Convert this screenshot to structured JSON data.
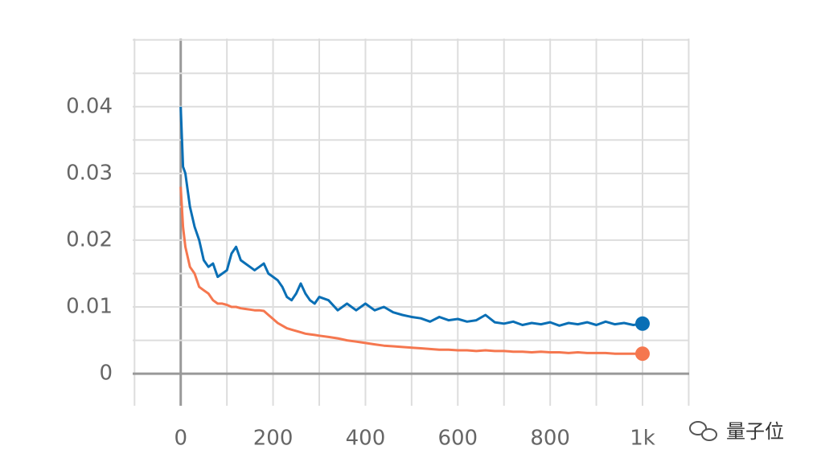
{
  "chart_data": {
    "type": "line",
    "x": [
      0,
      5,
      10,
      20,
      30,
      40,
      50,
      60,
      70,
      80,
      90,
      100,
      110,
      120,
      130,
      140,
      150,
      160,
      170,
      180,
      190,
      200,
      210,
      220,
      230,
      240,
      250,
      260,
      270,
      280,
      290,
      300,
      320,
      340,
      360,
      380,
      400,
      420,
      440,
      460,
      480,
      500,
      520,
      540,
      560,
      580,
      600,
      620,
      640,
      660,
      680,
      700,
      720,
      740,
      760,
      780,
      800,
      820,
      840,
      860,
      880,
      900,
      920,
      940,
      960,
      980,
      1000
    ],
    "series": [
      {
        "color": "#0a6fb5",
        "values": [
          0.04,
          0.031,
          0.03,
          0.025,
          0.022,
          0.02,
          0.017,
          0.016,
          0.0165,
          0.0145,
          0.015,
          0.0155,
          0.018,
          0.019,
          0.017,
          0.0165,
          0.016,
          0.0155,
          0.016,
          0.0165,
          0.015,
          0.0145,
          0.014,
          0.013,
          0.0115,
          0.011,
          0.012,
          0.0135,
          0.012,
          0.011,
          0.0105,
          0.0115,
          0.011,
          0.0095,
          0.0105,
          0.0095,
          0.0105,
          0.0095,
          0.01,
          0.0092,
          0.0088,
          0.0085,
          0.0083,
          0.0078,
          0.0085,
          0.008,
          0.0082,
          0.0078,
          0.008,
          0.0088,
          0.0077,
          0.0075,
          0.0078,
          0.0073,
          0.0076,
          0.0074,
          0.0077,
          0.0072,
          0.0076,
          0.0074,
          0.0077,
          0.0073,
          0.0078,
          0.0074,
          0.0076,
          0.0073,
          0.0075
        ]
      },
      {
        "color": "#f5774f",
        "values": [
          0.028,
          0.022,
          0.019,
          0.016,
          0.015,
          0.013,
          0.0125,
          0.012,
          0.011,
          0.0105,
          0.0105,
          0.0103,
          0.01,
          0.01,
          0.0098,
          0.0097,
          0.0096,
          0.0095,
          0.0095,
          0.0094,
          0.0088,
          0.0082,
          0.0076,
          0.0072,
          0.0068,
          0.0066,
          0.0064,
          0.0062,
          0.006,
          0.0059,
          0.0058,
          0.0057,
          0.0055,
          0.0053,
          0.005,
          0.0048,
          0.0046,
          0.0044,
          0.0042,
          0.0041,
          0.004,
          0.0039,
          0.0038,
          0.0037,
          0.0036,
          0.0036,
          0.0035,
          0.0035,
          0.0034,
          0.0035,
          0.0034,
          0.0034,
          0.0033,
          0.0033,
          0.0032,
          0.0033,
          0.0032,
          0.0032,
          0.0031,
          0.0032,
          0.0031,
          0.0031,
          0.0031,
          0.003,
          0.003,
          0.003,
          0.003
        ]
      }
    ],
    "xlim": [
      -104,
      1101
    ],
    "ylim": [
      -0.0048,
      0.0502
    ],
    "xticks": [
      0,
      200,
      400,
      600,
      800,
      {
        "value": 1000,
        "label": "1k"
      }
    ],
    "yticks": [
      0,
      0.01,
      0.02,
      0.03,
      0.04
    ],
    "x_gridlines": [
      -100,
      0,
      100,
      200,
      300,
      400,
      500,
      600,
      700,
      800,
      900,
      1000,
      1100
    ],
    "y_gridlines": [
      0,
      0.005,
      0.01,
      0.015,
      0.02,
      0.025,
      0.03,
      0.035,
      0.04,
      0.045,
      0.05
    ],
    "grid": true,
    "watermark": "量子位"
  }
}
